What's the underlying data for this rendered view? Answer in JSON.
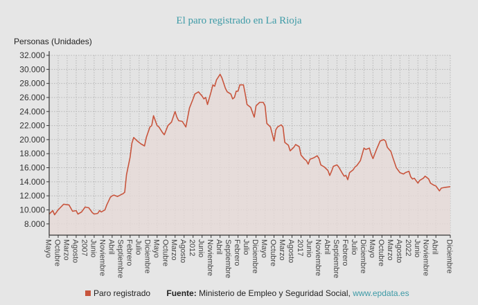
{
  "chart_data": {
    "type": "area",
    "title": "El paro registrado en La Rioja",
    "ylabel": "Personas (Unidades)",
    "xlabel": "",
    "ylim": [
      6400,
      32000
    ],
    "yticks": [
      8000,
      10000,
      12000,
      14000,
      16000,
      18000,
      20000,
      22000,
      24000,
      26000,
      28000,
      30000,
      32000
    ],
    "ytick_labels": [
      "8.000",
      "10.000",
      "12.000",
      "14.000",
      "16.000",
      "18.000",
      "20.000",
      "22.000",
      "24.000",
      "26.000",
      "28.000",
      "30.000",
      "32.000"
    ],
    "grid": true,
    "line_color": "#c8553d",
    "fill_color": "#e6d9d7",
    "xticks": [
      {
        "date": "2005-05",
        "label": "Mayo"
      },
      {
        "date": "2005-10",
        "label": "Octubre"
      },
      {
        "date": "2006-03",
        "label": "Marzo"
      },
      {
        "date": "2006-08",
        "label": "Agosto"
      },
      {
        "date": "2007-01",
        "label": "2007"
      },
      {
        "date": "2007-06",
        "label": "Junio"
      },
      {
        "date": "2007-11",
        "label": "Noviembre"
      },
      {
        "date": "2008-04",
        "label": "Abril"
      },
      {
        "date": "2008-09",
        "label": "Septiembre"
      },
      {
        "date": "2009-02",
        "label": "Febrero"
      },
      {
        "date": "2009-07",
        "label": "Julio"
      },
      {
        "date": "2009-12",
        "label": "Diciembre"
      },
      {
        "date": "2010-05",
        "label": "Mayo"
      },
      {
        "date": "2010-10",
        "label": "Octubre"
      },
      {
        "date": "2011-03",
        "label": "Marzo"
      },
      {
        "date": "2011-08",
        "label": "Agosto"
      },
      {
        "date": "2012-01",
        "label": "2012"
      },
      {
        "date": "2012-06",
        "label": "Junio"
      },
      {
        "date": "2012-11",
        "label": "Noviembre"
      },
      {
        "date": "2013-04",
        "label": "Abril"
      },
      {
        "date": "2013-09",
        "label": "Septiembre"
      },
      {
        "date": "2014-02",
        "label": "Febrero"
      },
      {
        "date": "2014-07",
        "label": "Julio"
      },
      {
        "date": "2014-12",
        "label": "Diciembre"
      },
      {
        "date": "2015-05",
        "label": "Mayo"
      },
      {
        "date": "2015-10",
        "label": "Octubre"
      },
      {
        "date": "2016-03",
        "label": "Marzo"
      },
      {
        "date": "2016-08",
        "label": "Agosto"
      },
      {
        "date": "2017-01",
        "label": "2017"
      },
      {
        "date": "2017-06",
        "label": "Junio"
      },
      {
        "date": "2017-11",
        "label": "Noviembre"
      },
      {
        "date": "2018-04",
        "label": "Abril"
      },
      {
        "date": "2018-09",
        "label": "Septiembre"
      },
      {
        "date": "2019-02",
        "label": "Febrero"
      },
      {
        "date": "2019-07",
        "label": "Julio"
      },
      {
        "date": "2019-12",
        "label": "Diciembre"
      },
      {
        "date": "2020-05",
        "label": "Mayo"
      },
      {
        "date": "2020-10",
        "label": "Octubre"
      },
      {
        "date": "2021-03",
        "label": "Marzo"
      },
      {
        "date": "2021-08",
        "label": "Agosto"
      },
      {
        "date": "2022-01",
        "label": "2022"
      },
      {
        "date": "2022-06",
        "label": "Junio"
      },
      {
        "date": "2022-11",
        "label": "Noviembre"
      },
      {
        "date": "2023-04",
        "label": "Abril"
      },
      {
        "date": "2023-12",
        "label": "Diciembre"
      }
    ],
    "series": [
      {
        "name": "Paro registrado",
        "points": [
          [
            "2005-05",
            9400
          ],
          [
            "2005-07",
            9900
          ],
          [
            "2005-08",
            9300
          ],
          [
            "2005-10",
            10000
          ],
          [
            "2006-01",
            10800
          ],
          [
            "2006-04",
            10700
          ],
          [
            "2006-06",
            9800
          ],
          [
            "2006-08",
            9900
          ],
          [
            "2006-09",
            9400
          ],
          [
            "2006-11",
            9700
          ],
          [
            "2007-01",
            10400
          ],
          [
            "2007-03",
            10300
          ],
          [
            "2007-05",
            9600
          ],
          [
            "2007-06",
            9400
          ],
          [
            "2007-08",
            9500
          ],
          [
            "2007-09",
            9900
          ],
          [
            "2007-10",
            9700
          ],
          [
            "2007-12",
            10000
          ],
          [
            "2008-01",
            10700
          ],
          [
            "2008-03",
            11800
          ],
          [
            "2008-04",
            12000
          ],
          [
            "2008-05",
            12100
          ],
          [
            "2008-07",
            11900
          ],
          [
            "2008-10",
            12300
          ],
          [
            "2008-11",
            12500
          ],
          [
            "2008-12",
            15000
          ],
          [
            "2009-02",
            17500
          ],
          [
            "2009-03",
            19500
          ],
          [
            "2009-04",
            20300
          ],
          [
            "2009-06",
            19800
          ],
          [
            "2009-08",
            19400
          ],
          [
            "2009-10",
            19100
          ],
          [
            "2009-11",
            20300
          ],
          [
            "2010-01",
            21800
          ],
          [
            "2010-02",
            22000
          ],
          [
            "2010-03",
            23400
          ],
          [
            "2010-05",
            22000
          ],
          [
            "2010-06",
            21800
          ],
          [
            "2010-08",
            21000
          ],
          [
            "2010-09",
            20700
          ],
          [
            "2010-11",
            22000
          ],
          [
            "2011-01",
            22500
          ],
          [
            "2011-03",
            24000
          ],
          [
            "2011-04",
            23200
          ],
          [
            "2011-05",
            22700
          ],
          [
            "2011-07",
            22600
          ],
          [
            "2011-09",
            21800
          ],
          [
            "2011-11",
            24500
          ],
          [
            "2012-01",
            25800
          ],
          [
            "2012-02",
            26500
          ],
          [
            "2012-04",
            26800
          ],
          [
            "2012-06",
            26200
          ],
          [
            "2012-07",
            25800
          ],
          [
            "2012-08",
            26000
          ],
          [
            "2012-09",
            25000
          ],
          [
            "2012-11",
            26800
          ],
          [
            "2012-12",
            27800
          ],
          [
            "2013-01",
            27600
          ],
          [
            "2013-02",
            28500
          ],
          [
            "2013-04",
            29300
          ],
          [
            "2013-05",
            28800
          ],
          [
            "2013-07",
            27300
          ],
          [
            "2013-08",
            26800
          ],
          [
            "2013-10",
            26500
          ],
          [
            "2013-11",
            25800
          ],
          [
            "2013-12",
            26000
          ],
          [
            "2014-01",
            26900
          ],
          [
            "2014-02",
            26900
          ],
          [
            "2014-03",
            27800
          ],
          [
            "2014-05",
            27800
          ],
          [
            "2014-06",
            26500
          ],
          [
            "2014-07",
            25000
          ],
          [
            "2014-09",
            24600
          ],
          [
            "2014-11",
            23200
          ],
          [
            "2014-12",
            24800
          ],
          [
            "2015-02",
            25300
          ],
          [
            "2015-04",
            25300
          ],
          [
            "2015-05",
            24800
          ],
          [
            "2015-06",
            22300
          ],
          [
            "2015-08",
            21800
          ],
          [
            "2015-09",
            20800
          ],
          [
            "2015-10",
            19800
          ],
          [
            "2015-11",
            21400
          ],
          [
            "2015-12",
            21800
          ],
          [
            "2016-02",
            22100
          ],
          [
            "2016-03",
            21800
          ],
          [
            "2016-04",
            19600
          ],
          [
            "2016-06",
            19200
          ],
          [
            "2016-07",
            18400
          ],
          [
            "2016-09",
            18900
          ],
          [
            "2016-10",
            19300
          ],
          [
            "2016-12",
            19000
          ],
          [
            "2017-01",
            17800
          ],
          [
            "2017-03",
            17200
          ],
          [
            "2017-04",
            17000
          ],
          [
            "2017-05",
            16500
          ],
          [
            "2017-06",
            17200
          ],
          [
            "2017-08",
            17400
          ],
          [
            "2017-10",
            17700
          ],
          [
            "2017-11",
            17300
          ],
          [
            "2017-12",
            16400
          ],
          [
            "2018-02",
            16100
          ],
          [
            "2018-04",
            15600
          ],
          [
            "2018-05",
            14900
          ],
          [
            "2018-06",
            15500
          ],
          [
            "2018-07",
            16200
          ],
          [
            "2018-09",
            16400
          ],
          [
            "2018-10",
            16100
          ],
          [
            "2018-12",
            15200
          ],
          [
            "2019-01",
            14800
          ],
          [
            "2019-02",
            14900
          ],
          [
            "2019-03",
            14300
          ],
          [
            "2019-04",
            15300
          ],
          [
            "2019-06",
            15700
          ],
          [
            "2019-07",
            16100
          ],
          [
            "2019-08",
            16300
          ],
          [
            "2019-10",
            17000
          ],
          [
            "2019-11",
            17900
          ],
          [
            "2019-12",
            18800
          ],
          [
            "2020-01",
            18600
          ],
          [
            "2020-03",
            18800
          ],
          [
            "2020-04",
            17900
          ],
          [
            "2020-05",
            17300
          ],
          [
            "2020-07",
            18600
          ],
          [
            "2020-08",
            19200
          ],
          [
            "2020-09",
            19800
          ],
          [
            "2020-11",
            20000
          ],
          [
            "2020-12",
            19800
          ],
          [
            "2021-01",
            18900
          ],
          [
            "2021-03",
            18300
          ],
          [
            "2021-04",
            17500
          ],
          [
            "2021-06",
            16000
          ],
          [
            "2021-08",
            15300
          ],
          [
            "2021-10",
            15100
          ],
          [
            "2021-11",
            15300
          ],
          [
            "2022-01",
            15500
          ],
          [
            "2022-02",
            14700
          ],
          [
            "2022-03",
            14400
          ],
          [
            "2022-04",
            14500
          ],
          [
            "2022-06",
            13800
          ],
          [
            "2022-07",
            14200
          ],
          [
            "2022-09",
            14500
          ],
          [
            "2022-10",
            14800
          ],
          [
            "2022-12",
            14400
          ],
          [
            "2023-01",
            13800
          ],
          [
            "2023-03",
            13500
          ],
          [
            "2023-04",
            13400
          ],
          [
            "2023-06",
            12700
          ],
          [
            "2023-07",
            13100
          ],
          [
            "2023-09",
            13200
          ],
          [
            "2023-12",
            13300
          ]
        ]
      }
    ]
  },
  "footer": {
    "legend_label": "Paro registrado",
    "source_label": "Fuente:",
    "source_text": "Ministerio de Empleo y Seguridad Social,",
    "source_link": "www.epdata.es"
  }
}
